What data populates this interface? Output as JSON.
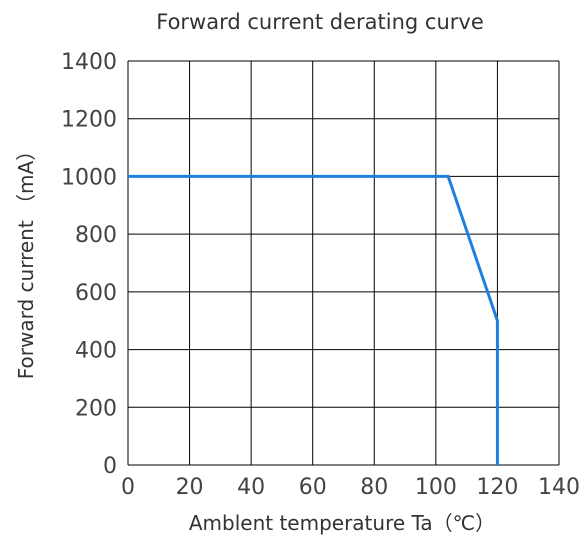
{
  "chart_data": {
    "type": "line",
    "title": "Forward current derating curve",
    "xlabel": "Amblent temperature Ta（℃）",
    "ylabel": "Forward current （mA）",
    "xlim": [
      0,
      140
    ],
    "ylim": [
      0,
      1400
    ],
    "x_ticks": [
      "0",
      "20",
      "40",
      "60",
      "80",
      "100",
      "120",
      "140"
    ],
    "y_ticks": [
      "0",
      "200",
      "400",
      "600",
      "800",
      "1000",
      "1200",
      "1400"
    ],
    "grid": true,
    "series": [
      {
        "x": [
          0,
          104,
          120,
          120
        ],
        "y": [
          1000,
          1000,
          500,
          0
        ]
      }
    ],
    "colors": {
      "line": "#1f7fe0",
      "grid": "#000000"
    }
  }
}
